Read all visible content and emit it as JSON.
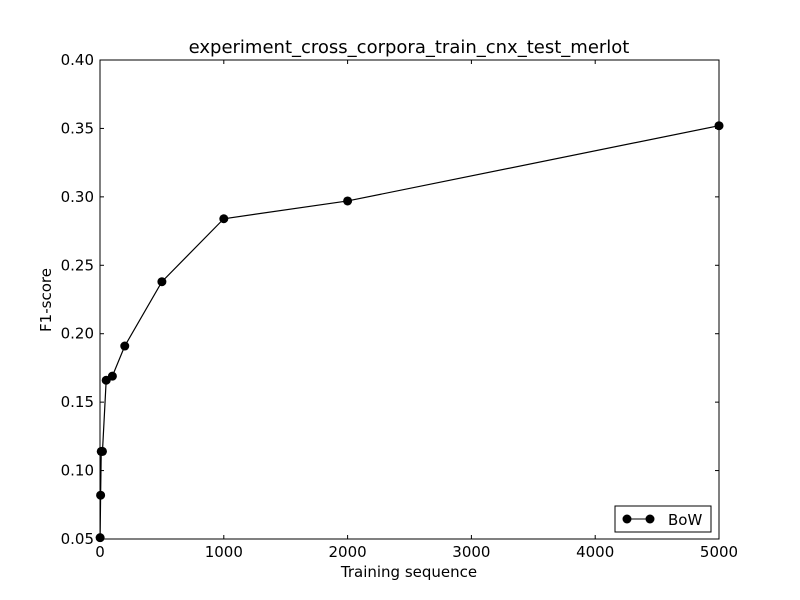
{
  "chart_data": {
    "type": "line",
    "title": "experiment_cross_corpora_train_cnx_test_merlot",
    "xlabel": "Training sequence",
    "ylabel": "F1-score",
    "xlim": [
      0,
      5000
    ],
    "ylim": [
      0.05,
      0.4
    ],
    "xticks": [
      0,
      1000,
      2000,
      3000,
      4000,
      5000
    ],
    "xtick_labels": [
      "0",
      "1000",
      "2000",
      "3000",
      "4000",
      "5000"
    ],
    "yticks": [
      0.05,
      0.1,
      0.15,
      0.2,
      0.25,
      0.3,
      0.35,
      0.4
    ],
    "ytick_labels": [
      "0.05",
      "0.10",
      "0.15",
      "0.20",
      "0.25",
      "0.30",
      "0.35",
      "0.40"
    ],
    "grid": false,
    "legend_position": "lower-right",
    "series": [
      {
        "name": "BoW",
        "color": "#000000",
        "marker": "circle",
        "x": [
          1,
          5,
          10,
          20,
          50,
          100,
          200,
          500,
          1000,
          2000,
          5000
        ],
        "y": [
          0.051,
          0.082,
          0.114,
          0.114,
          0.166,
          0.169,
          0.191,
          0.238,
          0.284,
          0.297,
          0.352
        ]
      }
    ]
  }
}
